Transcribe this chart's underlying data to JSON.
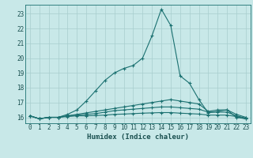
{
  "xlabel": "Humidex (Indice chaleur)",
  "background_color": "#c8e8e8",
  "grid_color": "#a8cece",
  "line_color": "#1a7070",
  "xlim": [
    -0.5,
    23.5
  ],
  "ylim": [
    15.6,
    23.6
  ],
  "yticks": [
    16,
    17,
    18,
    19,
    20,
    21,
    22,
    23
  ],
  "xticks": [
    0,
    1,
    2,
    3,
    4,
    5,
    6,
    7,
    8,
    9,
    10,
    11,
    12,
    13,
    14,
    15,
    16,
    17,
    18,
    19,
    20,
    21,
    22,
    23
  ],
  "line1_x": [
    0,
    1,
    2,
    3,
    4,
    5,
    6,
    7,
    8,
    9,
    10,
    11,
    12,
    13,
    14,
    15,
    16,
    17,
    18,
    19,
    20,
    21,
    22,
    23
  ],
  "line1_y": [
    16.1,
    15.9,
    16.0,
    16.0,
    16.2,
    16.5,
    17.1,
    17.8,
    18.5,
    19.0,
    19.3,
    19.5,
    20.0,
    21.5,
    23.3,
    22.2,
    18.8,
    18.3,
    17.2,
    16.3,
    16.4,
    16.5,
    16.0,
    15.9
  ],
  "line2_x": [
    0,
    1,
    2,
    3,
    4,
    5,
    6,
    7,
    8,
    9,
    10,
    11,
    12,
    13,
    14,
    15,
    16,
    17,
    18,
    19,
    20,
    21,
    22,
    23
  ],
  "line2_y": [
    16.1,
    15.9,
    16.0,
    16.0,
    16.1,
    16.2,
    16.3,
    16.4,
    16.5,
    16.6,
    16.7,
    16.8,
    16.9,
    17.0,
    17.1,
    17.2,
    17.1,
    17.0,
    16.9,
    16.4,
    16.5,
    16.5,
    16.2,
    16.0
  ],
  "line3_x": [
    0,
    1,
    2,
    3,
    4,
    5,
    6,
    7,
    8,
    9,
    10,
    11,
    12,
    13,
    14,
    15,
    16,
    17,
    18,
    19,
    20,
    21,
    22,
    23
  ],
  "line3_y": [
    16.1,
    15.9,
    16.0,
    16.0,
    16.1,
    16.15,
    16.2,
    16.25,
    16.35,
    16.45,
    16.5,
    16.55,
    16.6,
    16.65,
    16.7,
    16.7,
    16.65,
    16.6,
    16.55,
    16.35,
    16.35,
    16.35,
    16.1,
    15.95
  ],
  "line4_x": [
    0,
    1,
    2,
    3,
    4,
    5,
    6,
    7,
    8,
    9,
    10,
    11,
    12,
    13,
    14,
    15,
    16,
    17,
    18,
    19,
    20,
    21,
    22,
    23
  ],
  "line4_y": [
    16.1,
    15.9,
    16.0,
    16.0,
    16.05,
    16.1,
    16.1,
    16.12,
    16.15,
    16.2,
    16.22,
    16.25,
    16.28,
    16.3,
    16.32,
    16.32,
    16.28,
    16.25,
    16.22,
    16.15,
    16.15,
    16.15,
    16.05,
    15.9
  ],
  "tick_fontsize": 5.5,
  "xlabel_fontsize": 6.5
}
